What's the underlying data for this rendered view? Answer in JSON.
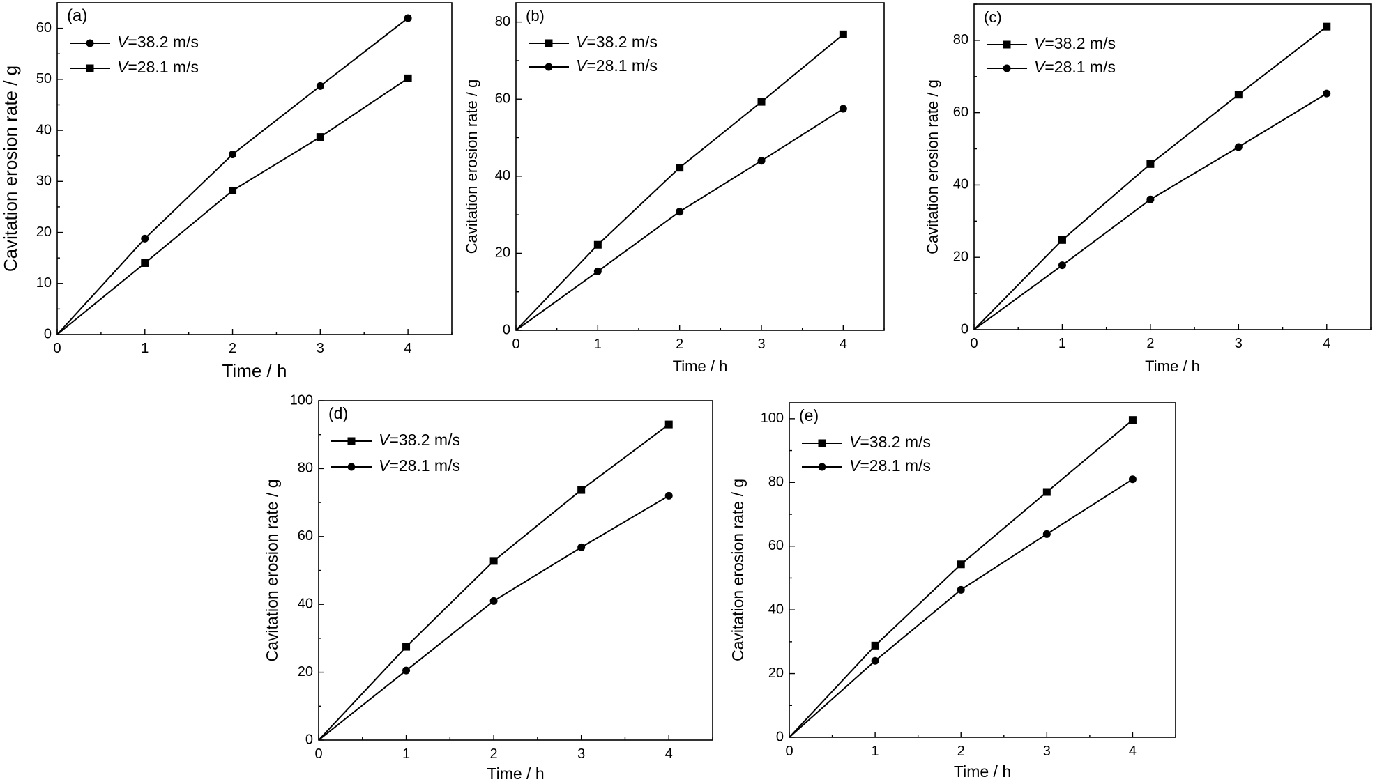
{
  "chart_data": [
    {
      "type": "line",
      "panel_label": "(a)",
      "xlabel": "Time / h",
      "ylabel": "Cavitation erosion rate / g",
      "xlim": [
        0,
        4.5
      ],
      "ylim": [
        0,
        65
      ],
      "xticks": [
        0,
        1,
        2,
        3,
        4
      ],
      "yticks": [
        0,
        10,
        20,
        30,
        40,
        50,
        60
      ],
      "legend_position": "top-left",
      "x": [
        0,
        1,
        2,
        3,
        4
      ],
      "series": [
        {
          "name": "V=38.2 m/s",
          "marker": "circle",
          "values": [
            0,
            18.8,
            35.3,
            48.7,
            62.0
          ]
        },
        {
          "name": "V=28.1 m/s",
          "marker": "square",
          "values": [
            0,
            14.0,
            28.2,
            38.7,
            50.2
          ]
        }
      ]
    },
    {
      "type": "line",
      "panel_label": "(b)",
      "xlabel": "Time / h",
      "ylabel": "Cavitation erosion rate / g",
      "xlim": [
        0,
        4.5
      ],
      "ylim": [
        0,
        85
      ],
      "xticks": [
        0,
        1,
        2,
        3,
        4
      ],
      "yticks": [
        0,
        20,
        40,
        60,
        80
      ],
      "legend_position": "top-left",
      "x": [
        0,
        1,
        2,
        3,
        4
      ],
      "series": [
        {
          "name": "V=38.2 m/s",
          "marker": "square",
          "values": [
            0,
            22.2,
            42.2,
            59.3,
            76.8
          ]
        },
        {
          "name": "V=28.1 m/s",
          "marker": "circle",
          "values": [
            0,
            15.3,
            30.8,
            44.0,
            57.5
          ]
        }
      ]
    },
    {
      "type": "line",
      "panel_label": "(c)",
      "xlabel": "Time / h",
      "ylabel": "Cavitation erosion rate / g",
      "xlim": [
        0,
        4.5
      ],
      "ylim": [
        0,
        90
      ],
      "xticks": [
        0,
        1,
        2,
        3,
        4
      ],
      "yticks": [
        0,
        20,
        40,
        60,
        80
      ],
      "legend_position": "top-left",
      "x": [
        0,
        1,
        2,
        3,
        4
      ],
      "series": [
        {
          "name": "V=38.2 m/s",
          "marker": "square",
          "values": [
            0,
            24.8,
            45.8,
            65.0,
            83.8
          ]
        },
        {
          "name": "V=28.1 m/s",
          "marker": "circle",
          "values": [
            0,
            17.8,
            36.0,
            50.5,
            65.3
          ]
        }
      ]
    },
    {
      "type": "line",
      "panel_label": "(d)",
      "xlabel": "Time / h",
      "ylabel": "Cavitation erosion rate / g",
      "xlim": [
        0,
        4.5
      ],
      "ylim": [
        0,
        100
      ],
      "xticks": [
        0,
        1,
        2,
        3,
        4
      ],
      "yticks": [
        0,
        20,
        40,
        60,
        80,
        100
      ],
      "legend_position": "top-left",
      "x": [
        0,
        1,
        2,
        3,
        4
      ],
      "series": [
        {
          "name": "V=38.2 m/s",
          "marker": "square",
          "values": [
            0,
            27.5,
            52.8,
            73.7,
            93.0
          ]
        },
        {
          "name": "V=28.1 m/s",
          "marker": "circle",
          "values": [
            0,
            20.5,
            41.0,
            56.8,
            72.0
          ]
        }
      ]
    },
    {
      "type": "line",
      "panel_label": "(e)",
      "xlabel": "Time / h",
      "ylabel": "Cavitation erosion rate / g",
      "xlim": [
        0,
        4.5
      ],
      "ylim": [
        0,
        105
      ],
      "xticks": [
        0,
        1,
        2,
        3,
        4
      ],
      "yticks": [
        0,
        20,
        40,
        60,
        80,
        100
      ],
      "legend_position": "top-left",
      "x": [
        0,
        1,
        2,
        3,
        4
      ],
      "series": [
        {
          "name": "V=38.2 m/s",
          "marker": "square",
          "values": [
            0,
            28.8,
            54.3,
            77.0,
            99.6
          ]
        },
        {
          "name": "V=28.1 m/s",
          "marker": "circle",
          "values": [
            0,
            24.0,
            46.3,
            63.8,
            81.0
          ]
        }
      ]
    }
  ]
}
